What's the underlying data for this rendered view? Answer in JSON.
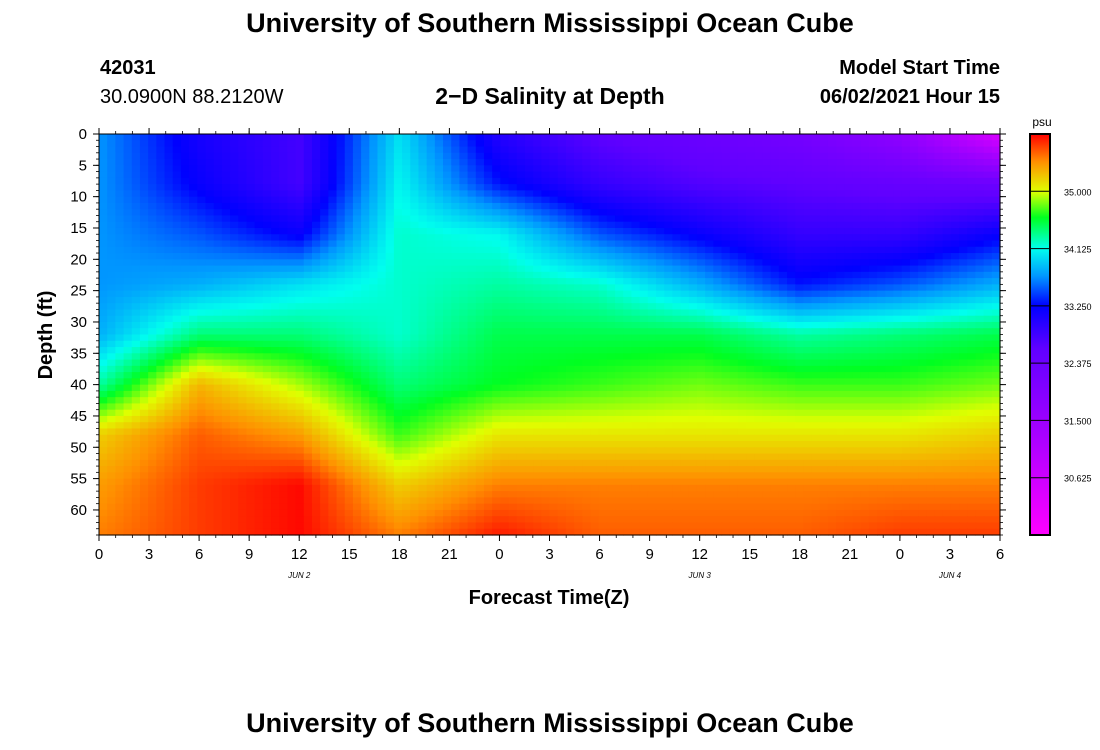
{
  "header": {
    "title": "University of Southern Mississippi Ocean Cube",
    "station_id": "42031",
    "coordinates": "30.0900N  88.2120W",
    "subtitle": "2−D Salinity at Depth",
    "model_start_label": "Model Start Time",
    "model_start_value": "06/02/2021 Hour 15"
  },
  "footer": {
    "title": "University of Southern Mississippi Ocean Cube"
  },
  "chart_data": {
    "type": "heatmap",
    "title": "2-D Salinity at Depth",
    "xlabel": "Forecast Time(Z)",
    "ylabel": "Depth (ft)",
    "x_tick_labels": [
      "0",
      "3",
      "6",
      "9",
      "12",
      "15",
      "18",
      "21",
      "0",
      "3",
      "6",
      "9",
      "12",
      "15",
      "18",
      "21",
      "0",
      "3",
      "6"
    ],
    "x_hours_from_start": [
      0,
      3,
      6,
      9,
      12,
      15,
      18,
      21,
      24,
      27,
      30,
      33,
      36,
      39,
      42,
      45,
      48,
      51,
      54
    ],
    "xlim": [
      0,
      54
    ],
    "y_ticks": [
      0,
      5,
      10,
      15,
      20,
      25,
      30,
      35,
      40,
      45,
      50,
      55,
      60
    ],
    "ylim": [
      0,
      64
    ],
    "date_labels": [
      {
        "text": "JUN 2",
        "hour": 12
      },
      {
        "text": "JUN 3",
        "hour": 36
      },
      {
        "text": "JUN 4",
        "hour": 51
      }
    ],
    "colorbar": {
      "unit": "psu",
      "min": 29.75,
      "max": 35.875,
      "ticks": [
        "35.000",
        "34.125",
        "33.250",
        "32.375",
        "31.500",
        "30.625"
      ],
      "tick_values": [
        35.0,
        34.125,
        33.25,
        32.375,
        31.5,
        30.625
      ],
      "color_stops": [
        {
          "v": 29.75,
          "c": "#ff00ff"
        },
        {
          "v": 31.5,
          "c": "#9b00ff"
        },
        {
          "v": 32.6,
          "c": "#6000ff"
        },
        {
          "v": 33.25,
          "c": "#0000ff"
        },
        {
          "v": 33.7,
          "c": "#0096ff"
        },
        {
          "v": 34.125,
          "c": "#00ffee"
        },
        {
          "v": 34.6,
          "c": "#00ff20"
        },
        {
          "v": 35.0,
          "c": "#e0ff00"
        },
        {
          "v": 35.45,
          "c": "#ff9000"
        },
        {
          "v": 35.875,
          "c": "#ff0000"
        }
      ]
    },
    "salinity_grid": {
      "depths": [
        0,
        8,
        16,
        24,
        32,
        40,
        48,
        56,
        64
      ],
      "hours": [
        0,
        6,
        12,
        18,
        24,
        30,
        36,
        42,
        48,
        54
      ],
      "values": [
        [
          33.7,
          33.1,
          32.8,
          34.0,
          33.0,
          32.6,
          32.4,
          32.2,
          31.7,
          30.4
        ],
        [
          33.7,
          33.2,
          32.8,
          34.1,
          33.3,
          32.9,
          32.7,
          32.6,
          32.5,
          32.4
        ],
        [
          33.7,
          33.5,
          33.2,
          34.2,
          34.1,
          33.5,
          33.2,
          32.9,
          32.9,
          33.2
        ],
        [
          33.7,
          33.8,
          34.0,
          34.2,
          34.3,
          34.2,
          33.8,
          33.3,
          33.5,
          33.8
        ],
        [
          33.8,
          34.4,
          34.4,
          34.2,
          34.5,
          34.5,
          34.5,
          34.3,
          34.4,
          34.5
        ],
        [
          34.3,
          35.3,
          34.9,
          34.4,
          34.6,
          34.7,
          34.8,
          34.7,
          34.7,
          34.8
        ],
        [
          35.2,
          35.6,
          35.4,
          34.7,
          35.1,
          35.1,
          35.1,
          35.1,
          35.1,
          35.2
        ],
        [
          35.4,
          35.7,
          35.85,
          35.2,
          35.5,
          35.5,
          35.5,
          35.5,
          35.5,
          35.5
        ],
        [
          35.5,
          35.7,
          35.85,
          35.5,
          35.8,
          35.6,
          35.6,
          35.6,
          35.7,
          35.7
        ]
      ]
    }
  }
}
